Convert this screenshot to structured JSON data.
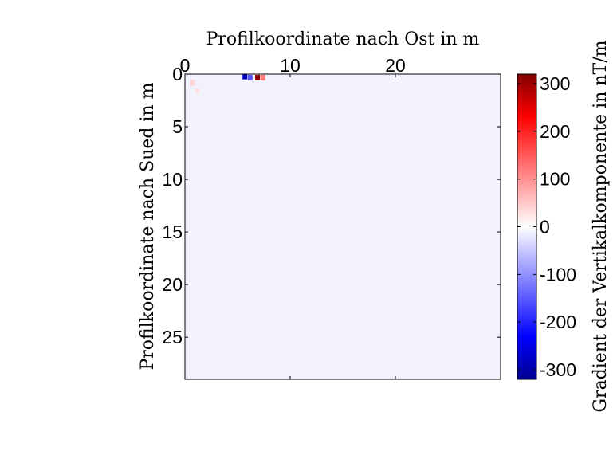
{
  "chart_data": {
    "type": "heatmap",
    "xlabel": "Profilkoordinate nach Ost in m",
    "ylabel": "Profilkoordinate nach Sued in m",
    "x_ticks": [
      0,
      10,
      20
    ],
    "y_ticks": [
      0,
      5,
      10,
      15,
      20,
      25
    ],
    "xlim": [
      0,
      30
    ],
    "ylim": [
      0,
      29
    ],
    "y_axis_reversed": true,
    "x_axis_position": "top",
    "colorbar": {
      "label": "Gradient der Vertikalkomponente in nT/m",
      "ticks": [
        300,
        200,
        100,
        0,
        -100,
        -200,
        -300
      ],
      "range": [
        -320,
        320
      ],
      "colors": {
        "min": "#00008f",
        "low": "#0000ff",
        "zero": "#ffffff",
        "high": "#ff0000",
        "max": "#800000"
      }
    },
    "background_value": -12,
    "anomalies": [
      {
        "x": 5.7,
        "y": 0.2,
        "value": -280
      },
      {
        "x": 6.2,
        "y": 0.3,
        "value": -150
      },
      {
        "x": 6.9,
        "y": 0.3,
        "value": 310
      },
      {
        "x": 7.4,
        "y": 0.3,
        "value": 120
      },
      {
        "x": 0.7,
        "y": 0.8,
        "value": 40
      },
      {
        "x": 1.2,
        "y": 1.6,
        "value": 25
      }
    ]
  }
}
